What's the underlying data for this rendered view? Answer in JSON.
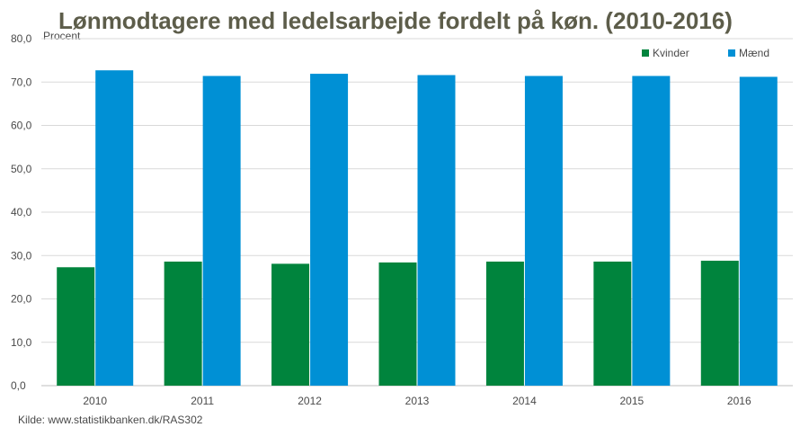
{
  "chart_data": {
    "type": "bar",
    "title": "Lønmodtagere med ledelsarbejde fordelt på køn. (2010-2016)",
    "ylabel": "Procent",
    "xlabel": "",
    "categories": [
      "2010",
      "2011",
      "2012",
      "2013",
      "2014",
      "2015",
      "2016"
    ],
    "series": [
      {
        "name": "Kvinder",
        "color": "#00843d",
        "values": [
          27.3,
          28.6,
          28.1,
          28.4,
          28.6,
          28.6,
          28.8
        ]
      },
      {
        "name": "Mænd",
        "color": "#0090d5",
        "values": [
          72.7,
          71.4,
          71.9,
          71.6,
          71.4,
          71.4,
          71.2
        ]
      }
    ],
    "ylim": [
      0,
      80
    ],
    "yticks": [
      "0,0",
      "10,0",
      "20,0",
      "30,0",
      "40,0",
      "50,0",
      "60,0",
      "70,0",
      "80,0"
    ],
    "grid": true,
    "legend_position": "top-right"
  },
  "source_text": "Kilde: www.statistikbanken.dk/RAS302",
  "colors": {
    "title": "#5d5d4a",
    "grid": "#d9d9d9",
    "axis": "#bfbfbf"
  }
}
